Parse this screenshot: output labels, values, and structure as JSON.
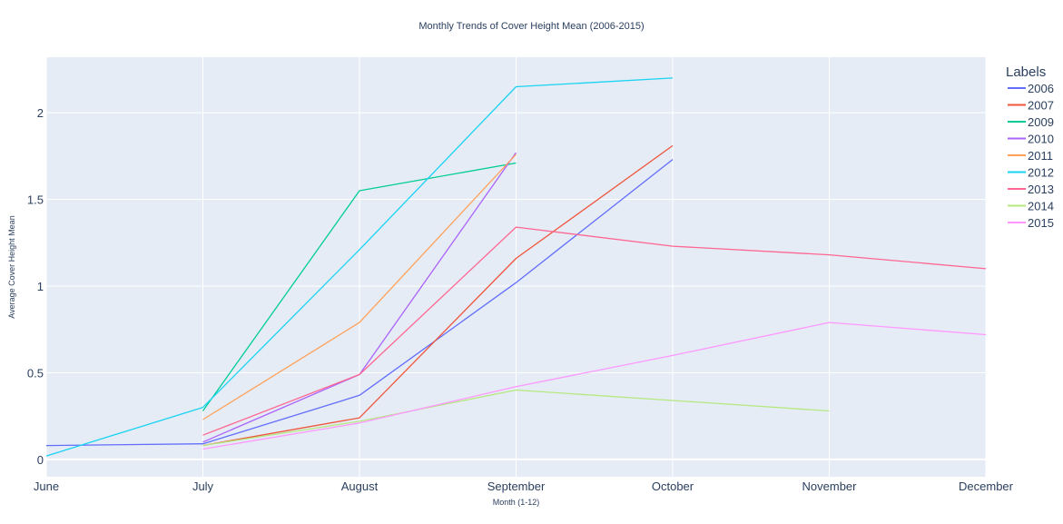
{
  "chart_data": {
    "type": "line",
    "title": "Monthly Trends of Cover Height Mean (2006-2015)",
    "xlabel": "Month (1-12)",
    "ylabel": "Average Cover Height Mean",
    "x_categories": [
      "June",
      "July",
      "August",
      "September",
      "October",
      "November",
      "December"
    ],
    "x_values": [
      6,
      7,
      8,
      9,
      10,
      11,
      12
    ],
    "xlim": [
      6,
      12
    ],
    "ylim": [
      -0.1,
      2.32
    ],
    "y_ticks": [
      0,
      0.5,
      1,
      1.5,
      2
    ],
    "y_tick_labels": [
      "0",
      "0.5",
      "1",
      "1.5",
      "2"
    ],
    "grid": true,
    "legend_title": "Labels",
    "legend_position": "right",
    "background_color": "#e5ecf6",
    "series": [
      {
        "name": "2006",
        "color": "#636efa",
        "x": [
          6,
          7,
          8,
          9,
          10
        ],
        "y": [
          0.08,
          0.09,
          0.37,
          1.02,
          1.73
        ]
      },
      {
        "name": "2007",
        "color": "#ef553b",
        "x": [
          7,
          8,
          9,
          10
        ],
        "y": [
          0.08,
          0.24,
          1.16,
          1.81
        ]
      },
      {
        "name": "2009",
        "color": "#00cc96",
        "x": [
          7,
          8,
          9
        ],
        "y": [
          0.28,
          1.55,
          1.71
        ]
      },
      {
        "name": "2010",
        "color": "#ab63fa",
        "x": [
          7,
          8,
          9
        ],
        "y": [
          0.1,
          0.49,
          1.77
        ]
      },
      {
        "name": "2011",
        "color": "#ffa15a",
        "x": [
          7,
          8,
          9
        ],
        "y": [
          0.23,
          0.79,
          1.76
        ]
      },
      {
        "name": "2012",
        "color": "#19d3f3",
        "x": [
          6,
          7,
          8,
          9,
          10
        ],
        "y": [
          0.02,
          0.3,
          1.21,
          2.15,
          2.2
        ]
      },
      {
        "name": "2013",
        "color": "#ff6692",
        "x": [
          7,
          8,
          9,
          10,
          11,
          12
        ],
        "y": [
          0.14,
          0.49,
          1.34,
          1.23,
          1.18,
          1.1
        ]
      },
      {
        "name": "2014",
        "color": "#b6e880",
        "x": [
          7,
          8,
          9,
          10,
          11
        ],
        "y": [
          0.08,
          0.22,
          0.4,
          0.34,
          0.28
        ]
      },
      {
        "name": "2015",
        "color": "#ff97ff",
        "x": [
          7,
          8,
          9,
          10,
          11,
          12
        ],
        "y": [
          0.06,
          0.21,
          0.42,
          0.6,
          0.79,
          0.72
        ]
      }
    ]
  }
}
